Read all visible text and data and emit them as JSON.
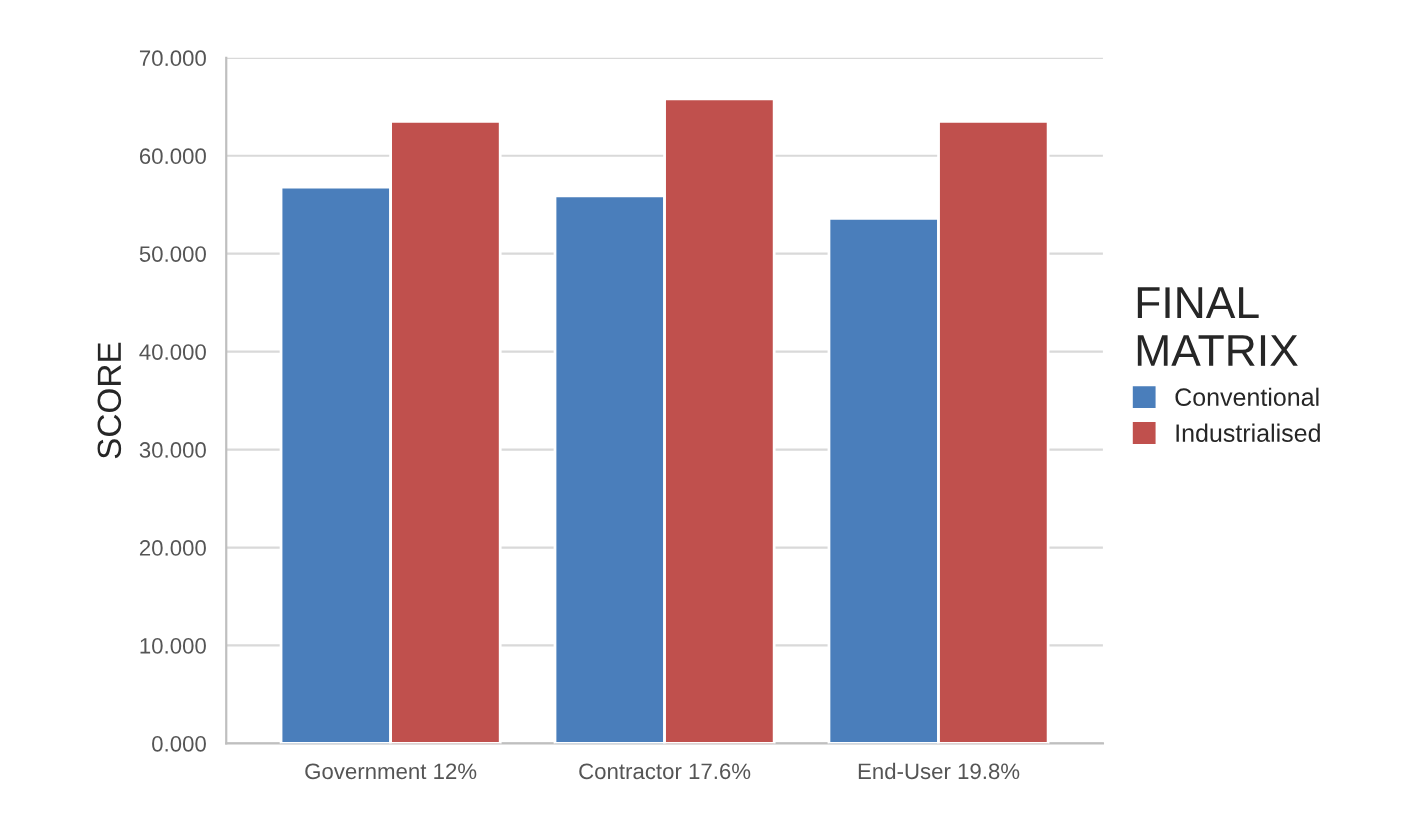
{
  "chart_data": {
    "type": "bar",
    "legend_title": "FINAL\nMATRIX",
    "ylabel": "SCORE",
    "categories": [
      "Government 12%",
      "Contractor 17.6%",
      "End-User 19.8%"
    ],
    "series": [
      {
        "name": "Conventional",
        "color": "#4a7ebb",
        "values": [
          56.8,
          55.9,
          53.6
        ]
      },
      {
        "name": "Industrialised",
        "color": "#c0504d",
        "values": [
          63.5,
          65.8,
          63.5
        ]
      }
    ],
    "ylim": [
      0,
      70
    ],
    "yticks": [
      {
        "value": 0,
        "label": "0.000"
      },
      {
        "value": 10,
        "label": "10.000"
      },
      {
        "value": 20,
        "label": "20.000"
      },
      {
        "value": 30,
        "label": "30.000"
      },
      {
        "value": 40,
        "label": "40.000"
      },
      {
        "value": 50,
        "label": "50.000"
      },
      {
        "value": 60,
        "label": "60.000"
      },
      {
        "value": 70,
        "label": "70.000"
      }
    ],
    "grid": "y",
    "legend": "right"
  }
}
